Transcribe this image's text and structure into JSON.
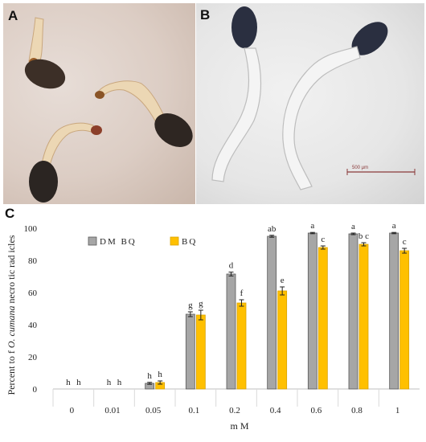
{
  "panels": {
    "a_label": "A",
    "b_label": "B",
    "c_label": "C",
    "scale_bar": "500 µm"
  },
  "colors": {
    "dmbq": "#a6a6a6",
    "bq": "#ffc000",
    "seed": "#2a2320",
    "radicle": "#e9d3b2"
  },
  "chart_data": {
    "type": "bar",
    "ylabel_prefix": "Percent to f ",
    "ylabel_species": "O. cumana",
    "ylabel_suffix": " necro tic rad icles",
    "xlabel": "m M",
    "ylim": [
      0,
      100
    ],
    "yticks": [
      0,
      20,
      40,
      60,
      80,
      100
    ],
    "categories": [
      "0",
      "0.01",
      "0.05",
      "0.1",
      "0.2",
      "0.4",
      "0.6",
      "0.8",
      "1"
    ],
    "legend_position": "top-left",
    "series": [
      {
        "name": "DM BQ",
        "color": "#a6a6a6",
        "values": [
          0,
          0,
          3.5,
          46.5,
          71.5,
          95,
          97,
          96.5,
          97
        ],
        "errors": [
          0,
          0,
          0.6,
          1.5,
          1.2,
          0.6,
          0.4,
          0.5,
          0.4
        ],
        "letters": [
          "h",
          "h",
          "h",
          "g",
          "d",
          "ab",
          "a",
          "a",
          "a"
        ]
      },
      {
        "name": "BQ",
        "color": "#ffc000",
        "values": [
          0,
          0,
          4,
          46,
          53.5,
          61,
          88,
          90,
          86
        ],
        "errors": [
          0,
          0,
          1.0,
          3.0,
          2.0,
          2.5,
          1.0,
          1.0,
          1.5
        ],
        "letters": [
          "h",
          "h",
          "h",
          "g",
          "f",
          "e",
          "c",
          "b c",
          "c"
        ]
      }
    ]
  }
}
